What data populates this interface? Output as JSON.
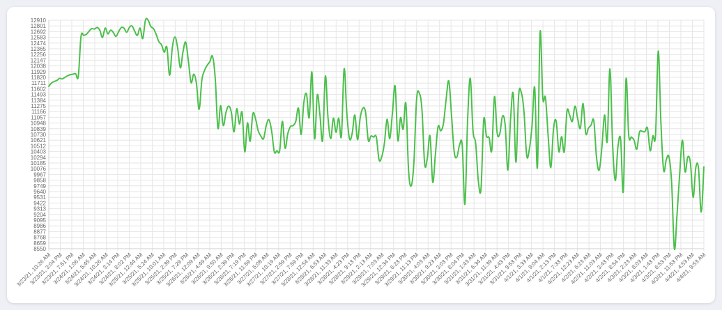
{
  "chart_data": {
    "type": "line",
    "title": "",
    "xlabel": "",
    "ylabel": "",
    "ylim": [
      8550,
      12910
    ],
    "grid": true,
    "legend": "none",
    "colors": {
      "line": "#4cbf4c",
      "grid": "#e6e6e6",
      "tick": "#666666",
      "card": "#ffffff",
      "background": "#eef0f6"
    },
    "y_ticks": [
      8550,
      8659,
      8768,
      8877,
      8986,
      9095,
      9204,
      9313,
      9422,
      9531,
      9640,
      9749,
      9858,
      9967,
      10076,
      10185,
      10294,
      10403,
      10512,
      10621,
      10730,
      10839,
      10948,
      11057,
      11166,
      11275,
      11384,
      11493,
      11602,
      11711,
      11820,
      11929,
      12038,
      12147,
      12256,
      12365,
      12474,
      12583,
      12692,
      12801,
      12910
    ],
    "x_labels": [
      "3/23/21, 10:26 AM",
      "3/23/21, 3:04 PM",
      "3/23/21, 7:51 PM",
      "3/24/21, 1:06 AM",
      "3/24/21, 5:45 AM",
      "3/24/21, 10:26 AM",
      "3/24/21, 3:14 PM",
      "3/24/21, 8:02 PM",
      "3/25/21, 12:44 AM",
      "3/25/21, 5:24 AM",
      "3/25/21, 10:01 AM",
      "3/25/21, 2:39 PM",
      "3/25/21, 7:29 PM",
      "3/26/21, 12:09 AM",
      "3/26/21, 4:49 AM",
      "3/26/21, 9:50 AM",
      "3/26/21, 2:39 PM",
      "3/26/21, 7:19 PM",
      "3/26/21, 11:59 PM",
      "3/27/21, 5:08 AM",
      "3/27/21, 10:19 AM",
      "3/27/21, 2:59 PM",
      "3/27/21, 7:59 PM",
      "3/28/21, 12:54 AM",
      "3/28/21, 6:53 AM",
      "3/28/21, 11:33 AM",
      "3/28/21, 4:23 PM",
      "3/28/21, 9:13 PM",
      "3/29/21, 2:13 AM",
      "3/29/21, 7:03 AM",
      "3/29/21, 12:34 PM",
      "3/29/21, 6:23 PM",
      "3/29/21, 11:13 PM",
      "3/30/21, 4:03 AM",
      "3/30/21, 9:23 AM",
      "3/30/21, 3:03 PM",
      "3/30/21, 8:04 PM",
      "3/31/21, 1:43 AM",
      "3/31/21, 6:34 AM",
      "3/31/21, 11:39 AM",
      "3/31/21, 4:43 PM",
      "3/31/21, 9:53 PM",
      "4/1/21, 3:33 AM",
      "4/1/21, 9:04 AM",
      "4/1/21, 2:13 PM",
      "4/1/21, 7:33 PM",
      "4/2/21, 12:23 AM",
      "4/2/21, 6:23 AM",
      "4/2/21, 11:03 AM",
      "4/2/21, 3:43 PM",
      "4/2/21, 8:54 PM",
      "4/3/21, 2:23 AM",
      "4/3/21, 8:03 AM",
      "4/3/21, 1:43 PM",
      "4/3/21, 6:53 PM",
      "4/3/21, 11:53 PM",
      "4/4/21, 4:53 AM",
      "4/4/21, 9:53 AM"
    ],
    "series": [
      {
        "x_start": "3/23/21, 10:26 AM",
        "x_end": "4/4/21, 9:53 AM",
        "values": [
          11650,
          11710,
          11740,
          11760,
          11800,
          11790,
          11820,
          11850,
          11870,
          11880,
          11890,
          11840,
          12600,
          12620,
          12640,
          12700,
          12750,
          12740,
          12770,
          12720,
          12580,
          12760,
          12650,
          12720,
          12680,
          12600,
          12690,
          12770,
          12760,
          12680,
          12770,
          12800,
          12700,
          12620,
          12760,
          12560,
          12910,
          12910,
          12790,
          12750,
          12640,
          12500,
          12440,
          12300,
          12390,
          11860,
          12380,
          12590,
          12380,
          12000,
          12310,
          12490,
          12130,
          11720,
          11880,
          11700,
          11210,
          11760,
          11950,
          12050,
          12120,
          12220,
          11800,
          10850,
          11280,
          10900,
          11150,
          11270,
          11150,
          10780,
          11220,
          10930,
          11150,
          10400,
          10950,
          10600,
          11120,
          11030,
          10800,
          10700,
          10650,
          10900,
          11010,
          10800,
          10400,
          10420,
          10420,
          10980,
          10470,
          10740,
          10880,
          10900,
          10980,
          11230,
          10730,
          11340,
          11500,
          11050,
          11920,
          10650,
          11480,
          11100,
          10620,
          11840,
          11050,
          10650,
          11040,
          10770,
          11040,
          10700,
          11980,
          11140,
          10650,
          10750,
          11100,
          10630,
          11050,
          11230,
          11150,
          10620,
          10700,
          10680,
          10680,
          10250,
          10300,
          10560,
          11020,
          10650,
          11140,
          11650,
          10620,
          11050,
          10830,
          11320,
          10050,
          9750,
          10200,
          11400,
          11520,
          11200,
          10170,
          10280,
          10700,
          9820,
          10350,
          10880,
          10800,
          10940,
          11400,
          11750,
          11100,
          10400,
          10300,
          10530,
          10520,
          9400,
          11000,
          11800,
          10800,
          10560,
          9840,
          9700,
          11010,
          10700,
          10670,
          10430,
          11450,
          10760,
          10750,
          11080,
          10900,
          10050,
          11020,
          11500,
          10200,
          11470,
          11530,
          11160,
          10330,
          10450,
          10900,
          11620,
          10100,
          12680,
          11430,
          11430,
          10700,
          10100,
          10840,
          10980,
          10400,
          10690,
          10400,
          11170,
          11100,
          10980,
          11270,
          11030,
          10850,
          11320,
          10750,
          10850,
          10910,
          10990,
          10300,
          10050,
          10480,
          11100,
          10600,
          11980,
          10550,
          9850,
          10500,
          10630,
          9650,
          11780,
          10720,
          10680,
          10620,
          10450,
          10770,
          10790,
          10780,
          10850,
          10420,
          10700,
          10720,
          12320,
          10950,
          10050,
          10250,
          10300,
          9800,
          8550,
          9200,
          9990,
          10620,
          10020,
          10300,
          10180,
          9530,
          10100,
          10080,
          9250,
          10110
        ]
      }
    ]
  }
}
